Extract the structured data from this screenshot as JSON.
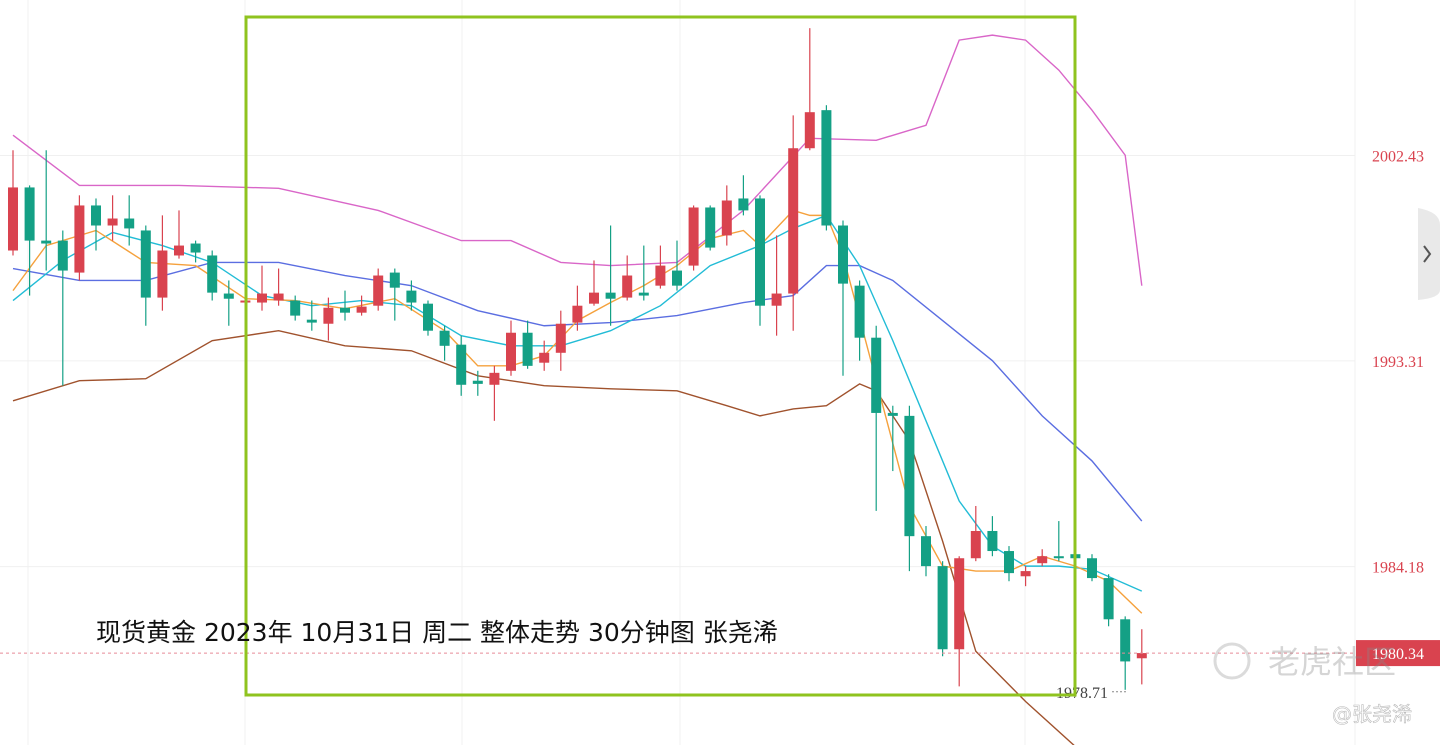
{
  "chart_data": {
    "type": "candlestick",
    "annotation": "现货黄金 2023年 10月31日 周二 整体走势 30分钟图  张尧浠",
    "watermark": "老虎社区",
    "credit": "@张尧浠",
    "ylim": [
      1976.26,
      2009.33
    ],
    "yticks": [
      2002.43,
      1993.31,
      1984.18
    ],
    "grid": true,
    "up_color": "#d9434f",
    "down_color": "#14a085",
    "last_price": 1980.34,
    "low_label": 1978.71,
    "open": [
      1998.21,
      2001.01,
      1998.65,
      1998.65,
      1997.23,
      2000.21,
      1999.32,
      1999.63,
      1999.1,
      1996.12,
      1997.99,
      1998.52,
      1997.99,
      1996.3,
      1995.9,
      1995.9,
      1995.99,
      1995.99,
      1995.14,
      1994.96,
      1995.67,
      1995.45,
      1995.76,
      1997.23,
      1996.43,
      1995.85,
      1994.65,
      1994.03,
      1992.43,
      1992.25,
      1992.87,
      1994.56,
      1993.23,
      1993.67,
      1995.01,
      1995.85,
      1996.34,
      1996.12,
      1996.34,
      1996.65,
      1997.32,
      1997.54,
      2000.12,
      1998.88,
      2000.52,
      2000.52,
      1995.76,
      1996.3,
      2002.75,
      2004.44,
      1999.32,
      1996.65,
      1994.34,
      1991.0,
      1990.87,
      1985.53,
      1984.2,
      1980.51,
      1984.55,
      1985.76,
      1984.87,
      1983.75,
      1984.33,
      1984.64,
      1984.73,
      1984.55,
      1983.67,
      1981.84,
      1980.11
    ],
    "high": [
      2002.66,
      2001.1,
      2002.66,
      1999.1,
      2000.66,
      2000.52,
      2000.66,
      2000.66,
      1999.32,
      1999.77,
      1999.99,
      1998.65,
      1998.21,
      1996.88,
      1996.65,
      1997.54,
      1997.41,
      1996.21,
      1995.99,
      1996.12,
      1996.43,
      1996.21,
      1997.41,
      1997.41,
      1996.88,
      1995.99,
      1994.87,
      1994.43,
      1992.87,
      1993.09,
      1995.1,
      1995.1,
      1994.21,
      1995.54,
      1996.65,
      1997.77,
      1999.32,
      1997.99,
      1998.43,
      1998.43,
      1998.65,
      2000.21,
      2000.21,
      2001.1,
      2001.55,
      2000.66,
      1998.88,
      2004.21,
      2008.08,
      2004.66,
      1999.54,
      1996.88,
      1994.87,
      1991.32,
      1991.32,
      1985.98,
      1984.42,
      1984.64,
      1986.87,
      1986.42,
      1985.09,
      1984.2,
      1984.95,
      1986.2,
      1985.31,
      1984.73,
      1983.84,
      1981.97,
      1981.4
    ],
    "low": [
      1997.99,
      1996.21,
      1997.32,
      1992.21,
      1996.88,
      1998.21,
      1998.65,
      1998.43,
      1994.87,
      1995.54,
      1997.85,
      1997.68,
      1995.99,
      1994.87,
      1995.76,
      1995.54,
      1995.76,
      1995.1,
      1994.65,
      1994.21,
      1995.1,
      1995.32,
      1995.54,
      1995.1,
      1995.54,
      1994.43,
      1993.32,
      1991.76,
      1991.76,
      1990.65,
      1992.65,
      1992.96,
      1992.87,
      1992.87,
      1994.65,
      1995.76,
      1994.87,
      1995.99,
      1995.99,
      1996.52,
      1996.43,
      1997.32,
      1998.21,
      1998.43,
      1999.77,
      1994.87,
      1994.43,
      1994.65,
      2002.66,
      1999.1,
      1992.65,
      1993.32,
      1986.65,
      1988.42,
      1983.98,
      1983.75,
      1980.2,
      1978.86,
      1984.42,
      1984.64,
      1983.53,
      1983.31,
      1984.2,
      1984.42,
      1984.2,
      1983.53,
      1981.53,
      1978.71,
      1978.95
    ],
    "close": [
      2001.01,
      1998.65,
      1998.52,
      1997.32,
      2000.21,
      1999.32,
      1999.63,
      1999.19,
      1996.12,
      1998.21,
      1998.43,
      1998.12,
      1996.34,
      1996.07,
      1995.99,
      1996.3,
      1996.3,
      1995.32,
      1995.01,
      1995.67,
      1995.45,
      1995.72,
      1997.1,
      1996.56,
      1995.9,
      1994.65,
      1993.98,
      1992.25,
      1992.29,
      1992.78,
      1994.56,
      1993.09,
      1993.67,
      1994.96,
      1995.76,
      1996.34,
      1996.07,
      1997.1,
      1996.21,
      1997.54,
      1996.65,
      2000.12,
      1998.34,
      2000.43,
      1999.99,
      1995.76,
      1996.3,
      2002.75,
      2004.35,
      1999.32,
      1996.74,
      1994.34,
      1991.0,
      1990.87,
      1985.53,
      1984.2,
      1980.51,
      1984.55,
      1985.76,
      1984.87,
      1983.89,
      1983.98,
      1984.64,
      1984.55,
      1984.55,
      1983.67,
      1981.84,
      1979.97,
      1980.34
    ],
    "overlays": [
      {
        "color": "#d966c8",
        "x": [
          0,
          4,
          10,
          16,
          22,
          27,
          30,
          33,
          36,
          40,
          44,
          48,
          52,
          55,
          57,
          59,
          61,
          63,
          65,
          67,
          68
        ],
        "values": [
          2003.33,
          2001.1,
          2001.1,
          2000.97,
          1999.99,
          1998.65,
          1998.65,
          1997.68,
          1997.54,
          1997.68,
          1999.99,
          2003.19,
          2003.1,
          2003.77,
          2007.55,
          2007.77,
          2007.55,
          2006.22,
          2004.44,
          2002.44,
          1996.65
        ]
      },
      {
        "color": "#a0522d",
        "x": [
          0,
          4,
          8,
          12,
          16,
          20,
          24,
          28,
          32,
          36,
          40,
          43,
          45,
          47,
          49,
          51,
          52,
          54,
          56,
          58,
          61,
          64
        ],
        "values": [
          1991.54,
          1992.43,
          1992.52,
          1994.21,
          1994.65,
          1993.98,
          1993.76,
          1992.65,
          1992.21,
          1992.07,
          1991.98,
          1991.32,
          1990.87,
          1991.18,
          1991.32,
          1992.29,
          1991.98,
          1989.76,
          1985.31,
          1980.42,
          1978.19,
          1976.19
        ]
      },
      {
        "color": "#5b6ee1",
        "x": [
          0,
          4,
          8,
          12,
          16,
          20,
          24,
          28,
          32,
          36,
          40,
          44,
          47,
          49,
          51,
          53,
          56,
          59,
          62,
          65,
          68
        ],
        "values": [
          1997.41,
          1996.88,
          1996.88,
          1997.68,
          1997.68,
          1997.1,
          1996.65,
          1995.54,
          1994.87,
          1995.01,
          1995.32,
          1995.9,
          1996.21,
          1997.54,
          1997.54,
          1996.88,
          1995.1,
          1993.32,
          1990.87,
          1988.87,
          1986.2
        ]
      },
      {
        "color": "#22bcd6",
        "x": [
          0,
          3,
          6,
          9,
          12,
          15,
          18,
          21,
          24,
          27,
          30,
          33,
          36,
          39,
          42,
          45,
          47,
          49,
          51,
          53,
          55,
          57,
          59,
          61,
          63,
          65,
          68
        ],
        "values": [
          1995.99,
          1997.77,
          1999.01,
          1998.43,
          1997.68,
          1996.21,
          1995.76,
          1995.99,
          1995.76,
          1994.43,
          1993.98,
          1993.98,
          1994.65,
          1995.76,
          1997.54,
          1998.43,
          1999.19,
          1999.77,
          1997.54,
          1994.21,
          1990.65,
          1987.09,
          1985.09,
          1984.2,
          1984.2,
          1984.06,
          1983.09
        ]
      },
      {
        "color": "#f5a13c",
        "x": [
          0,
          2,
          5,
          8,
          11,
          14,
          17,
          20,
          23,
          26,
          28,
          30,
          32,
          34,
          36,
          38,
          40,
          42,
          44,
          45,
          47,
          48,
          49,
          50,
          52,
          54,
          56,
          58,
          60,
          62,
          64,
          66,
          68
        ],
        "values": [
          1996.43,
          1998.43,
          1999.1,
          1997.68,
          1997.54,
          1996.07,
          1995.99,
          1995.63,
          1996.07,
          1994.65,
          1993.09,
          1993.09,
          1993.54,
          1995.1,
          1995.9,
          1996.65,
          1997.54,
          1998.74,
          1999.1,
          1998.43,
          1999.99,
          1999.77,
          1999.77,
          1997.99,
          1992.43,
          1986.87,
          1984.2,
          1983.98,
          1983.98,
          1984.64,
          1984.2,
          1983.53,
          1982.11
        ]
      }
    ]
  }
}
